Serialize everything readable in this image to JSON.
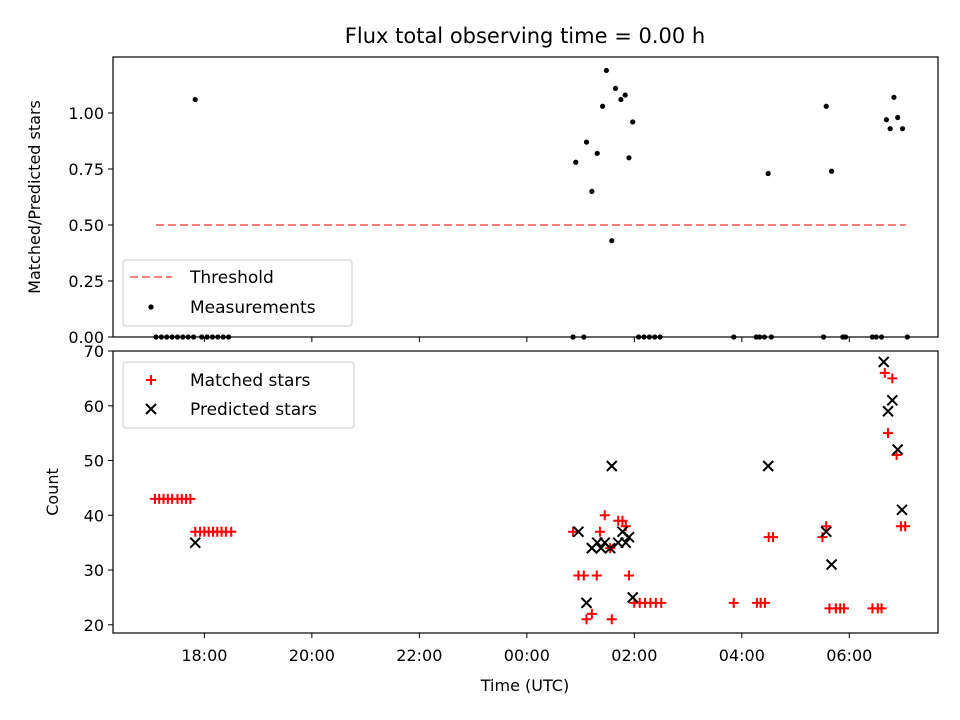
{
  "chart_data": [
    {
      "type": "scatter",
      "title": "Flux total observing time = 0.00 h",
      "xlabel": "",
      "ylabel": "Matched/Predicted stars",
      "ylim": [
        0,
        1.25
      ],
      "yticks": [
        0.0,
        0.25,
        0.5,
        0.75,
        1.0
      ],
      "yticklabels": [
        "0.00",
        "0.25",
        "0.50",
        "0.75",
        "1.00"
      ],
      "legend_position": "lower-left",
      "series": [
        {
          "name": "Threshold",
          "kind": "dashed-line",
          "color": "#ff7f7f",
          "x": [
            17.1,
            31.05
          ],
          "y": [
            0.5,
            0.5
          ]
        },
        {
          "name": "Measurements",
          "kind": "dots",
          "color": "#000000",
          "points": [
            [
              17.83,
              1.06
            ],
            [
              17.1,
              0
            ],
            [
              17.2,
              0
            ],
            [
              17.3,
              0
            ],
            [
              17.4,
              0
            ],
            [
              17.5,
              0
            ],
            [
              17.6,
              0
            ],
            [
              17.7,
              0
            ],
            [
              17.8,
              0
            ],
            [
              17.95,
              0
            ],
            [
              18.05,
              0
            ],
            [
              18.15,
              0
            ],
            [
              18.25,
              0
            ],
            [
              18.35,
              0
            ],
            [
              18.45,
              0
            ],
            [
              24.91,
              0.78
            ],
            [
              25.11,
              0.87
            ],
            [
              25.21,
              0.65
            ],
            [
              25.31,
              0.82
            ],
            [
              25.41,
              1.03
            ],
            [
              25.48,
              1.19
            ],
            [
              25.58,
              0.43
            ],
            [
              25.65,
              1.11
            ],
            [
              25.75,
              1.06
            ],
            [
              25.83,
              1.08
            ],
            [
              25.9,
              0.8
            ],
            [
              25.97,
              0.96
            ],
            [
              24.86,
              0
            ],
            [
              25.06,
              0
            ],
            [
              26.08,
              0
            ],
            [
              26.18,
              0
            ],
            [
              26.28,
              0
            ],
            [
              26.38,
              0
            ],
            [
              26.48,
              0
            ],
            [
              27.85,
              0
            ],
            [
              28.27,
              0
            ],
            [
              28.33,
              0
            ],
            [
              28.42,
              0
            ],
            [
              28.55,
              0
            ],
            [
              29.52,
              0
            ],
            [
              29.88,
              0
            ],
            [
              29.93,
              0
            ],
            [
              30.43,
              0
            ],
            [
              30.5,
              0
            ],
            [
              30.6,
              0
            ],
            [
              31.08,
              0
            ],
            [
              28.49,
              0.73
            ],
            [
              29.57,
              1.03
            ],
            [
              29.67,
              0.74
            ],
            [
              30.69,
              0.97
            ],
            [
              30.76,
              0.93
            ],
            [
              30.83,
              1.07
            ],
            [
              30.9,
              0.98
            ],
            [
              30.99,
              0.93
            ]
          ]
        }
      ]
    },
    {
      "type": "scatter",
      "title": "",
      "xlabel": "Time (UTC)",
      "ylabel": "Count",
      "xlim": [
        16.3,
        31.65
      ],
      "ylim": [
        18.5,
        70
      ],
      "xticks": [
        18,
        20,
        22,
        24,
        26,
        28,
        30
      ],
      "xticklabels": [
        "18:00",
        "20:00",
        "22:00",
        "00:00",
        "02:00",
        "04:00",
        "06:00"
      ],
      "yticks": [
        20,
        30,
        40,
        50,
        60,
        70
      ],
      "yticklabels": [
        "20",
        "30",
        "40",
        "50",
        "60",
        "70"
      ],
      "legend_position": "top-left",
      "series": [
        {
          "name": "Matched stars",
          "marker": "plus",
          "color": "#ff0000",
          "points": [
            [
              17.08,
              43
            ],
            [
              17.16,
              43
            ],
            [
              17.24,
              43
            ],
            [
              17.32,
              43
            ],
            [
              17.4,
              43
            ],
            [
              17.5,
              43
            ],
            [
              17.58,
              43
            ],
            [
              17.66,
              43
            ],
            [
              17.74,
              43
            ],
            [
              17.83,
              37
            ],
            [
              17.92,
              37
            ],
            [
              18.0,
              37
            ],
            [
              18.08,
              37
            ],
            [
              18.16,
              37
            ],
            [
              18.24,
              37
            ],
            [
              18.32,
              37
            ],
            [
              18.4,
              37
            ],
            [
              18.5,
              37
            ],
            [
              24.86,
              37
            ],
            [
              24.96,
              29
            ],
            [
              25.06,
              29
            ],
            [
              25.11,
              21
            ],
            [
              25.21,
              22
            ],
            [
              25.3,
              29
            ],
            [
              25.36,
              37
            ],
            [
              25.45,
              40
            ],
            [
              25.55,
              34
            ],
            [
              25.58,
              21
            ],
            [
              25.7,
              39
            ],
            [
              25.78,
              39
            ],
            [
              25.84,
              38
            ],
            [
              25.9,
              29
            ],
            [
              26.0,
              24
            ],
            [
              26.1,
              24
            ],
            [
              26.2,
              24
            ],
            [
              26.3,
              24
            ],
            [
              26.4,
              24
            ],
            [
              26.5,
              24
            ],
            [
              27.85,
              24
            ],
            [
              28.28,
              24
            ],
            [
              28.35,
              24
            ],
            [
              28.43,
              24
            ],
            [
              28.5,
              36
            ],
            [
              28.58,
              36
            ],
            [
              29.5,
              36
            ],
            [
              29.57,
              38
            ],
            [
              29.63,
              23
            ],
            [
              29.75,
              23
            ],
            [
              29.83,
              23
            ],
            [
              29.9,
              23
            ],
            [
              30.43,
              23
            ],
            [
              30.53,
              23
            ],
            [
              30.6,
              23
            ],
            [
              30.66,
              66
            ],
            [
              30.72,
              55
            ],
            [
              30.8,
              65
            ],
            [
              30.88,
              51
            ],
            [
              30.96,
              38
            ],
            [
              31.04,
              38
            ]
          ]
        },
        {
          "name": "Predicted stars",
          "marker": "x",
          "color": "#000000",
          "points": [
            [
              17.83,
              35
            ],
            [
              24.96,
              37
            ],
            [
              25.11,
              24
            ],
            [
              25.21,
              34
            ],
            [
              25.31,
              35
            ],
            [
              25.38,
              34
            ],
            [
              25.45,
              35
            ],
            [
              25.55,
              34
            ],
            [
              25.58,
              49
            ],
            [
              25.7,
              35
            ],
            [
              25.78,
              37
            ],
            [
              25.84,
              35
            ],
            [
              25.9,
              36
            ],
            [
              25.97,
              25
            ],
            [
              28.49,
              49
            ],
            [
              29.57,
              37
            ],
            [
              29.67,
              31
            ],
            [
              30.64,
              68
            ],
            [
              30.72,
              59
            ],
            [
              30.8,
              61
            ],
            [
              30.9,
              52
            ],
            [
              30.98,
              41
            ]
          ]
        }
      ]
    }
  ]
}
